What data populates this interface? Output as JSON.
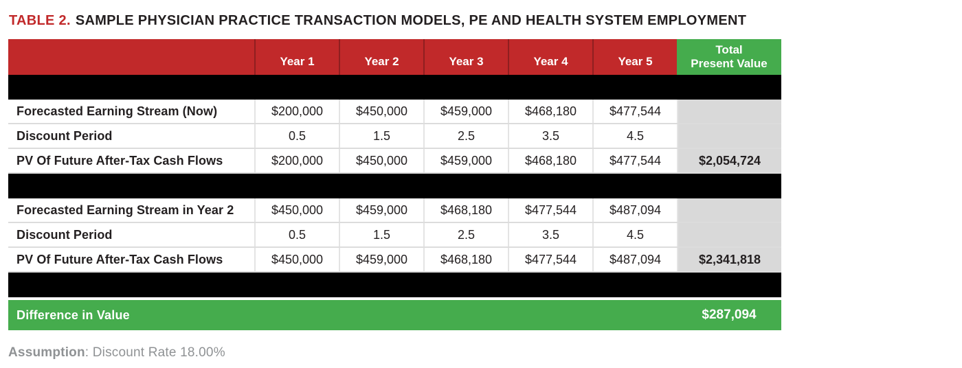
{
  "title": {
    "tag": "TABLE 2.",
    "text": "SAMPLE PHYSICIAN PRACTICE TRANSACTION MODELS, PE AND HEALTH SYSTEM EMPLOYMENT"
  },
  "colors": {
    "header_red": "#C1292A",
    "accent_green": "#45AC4D",
    "muted_cell_gray": "#D9D9D9",
    "separator_black": "#000000",
    "grid_line": "#DCDCDC",
    "note_gray": "#8F9294"
  },
  "table": {
    "columns": [
      "",
      "Year 1",
      "Year 2",
      "Year 3",
      "Year 4",
      "Year 5"
    ],
    "total_column": {
      "line1": "Total",
      "line2": "Present Value"
    },
    "sections": [
      {
        "rows": [
          {
            "label": "Forecasted Earning Stream (Now)",
            "values": [
              "$200,000",
              "$450,000",
              "$459,000",
              "$468,180",
              "$477,544"
            ],
            "total": ""
          },
          {
            "label": "Discount Period",
            "values": [
              "0.5",
              "1.5",
              "2.5",
              "3.5",
              "4.5"
            ],
            "total": ""
          },
          {
            "label": "PV Of Future After-Tax Cash Flows",
            "values": [
              "$200,000",
              "$450,000",
              "$459,000",
              "$468,180",
              "$477,544"
            ],
            "total": "$2,054,724"
          }
        ]
      },
      {
        "rows": [
          {
            "label": "Forecasted Earning Stream in Year 2",
            "values": [
              "$450,000",
              "$459,000",
              "$468,180",
              "$477,544",
              "$487,094"
            ],
            "total": ""
          },
          {
            "label": "Discount Period",
            "values": [
              "0.5",
              "1.5",
              "2.5",
              "3.5",
              "4.5"
            ],
            "total": ""
          },
          {
            "label": "PV Of Future After-Tax Cash Flows",
            "values": [
              "$450,000",
              "$459,000",
              "$468,180",
              "$477,544",
              "$487,094"
            ],
            "total": "$2,341,818"
          }
        ]
      }
    ],
    "difference": {
      "label": "Difference in Value",
      "value": "$287,094"
    }
  },
  "footer": {
    "label": "Assumption",
    "text": ": Discount Rate 18.00%"
  }
}
